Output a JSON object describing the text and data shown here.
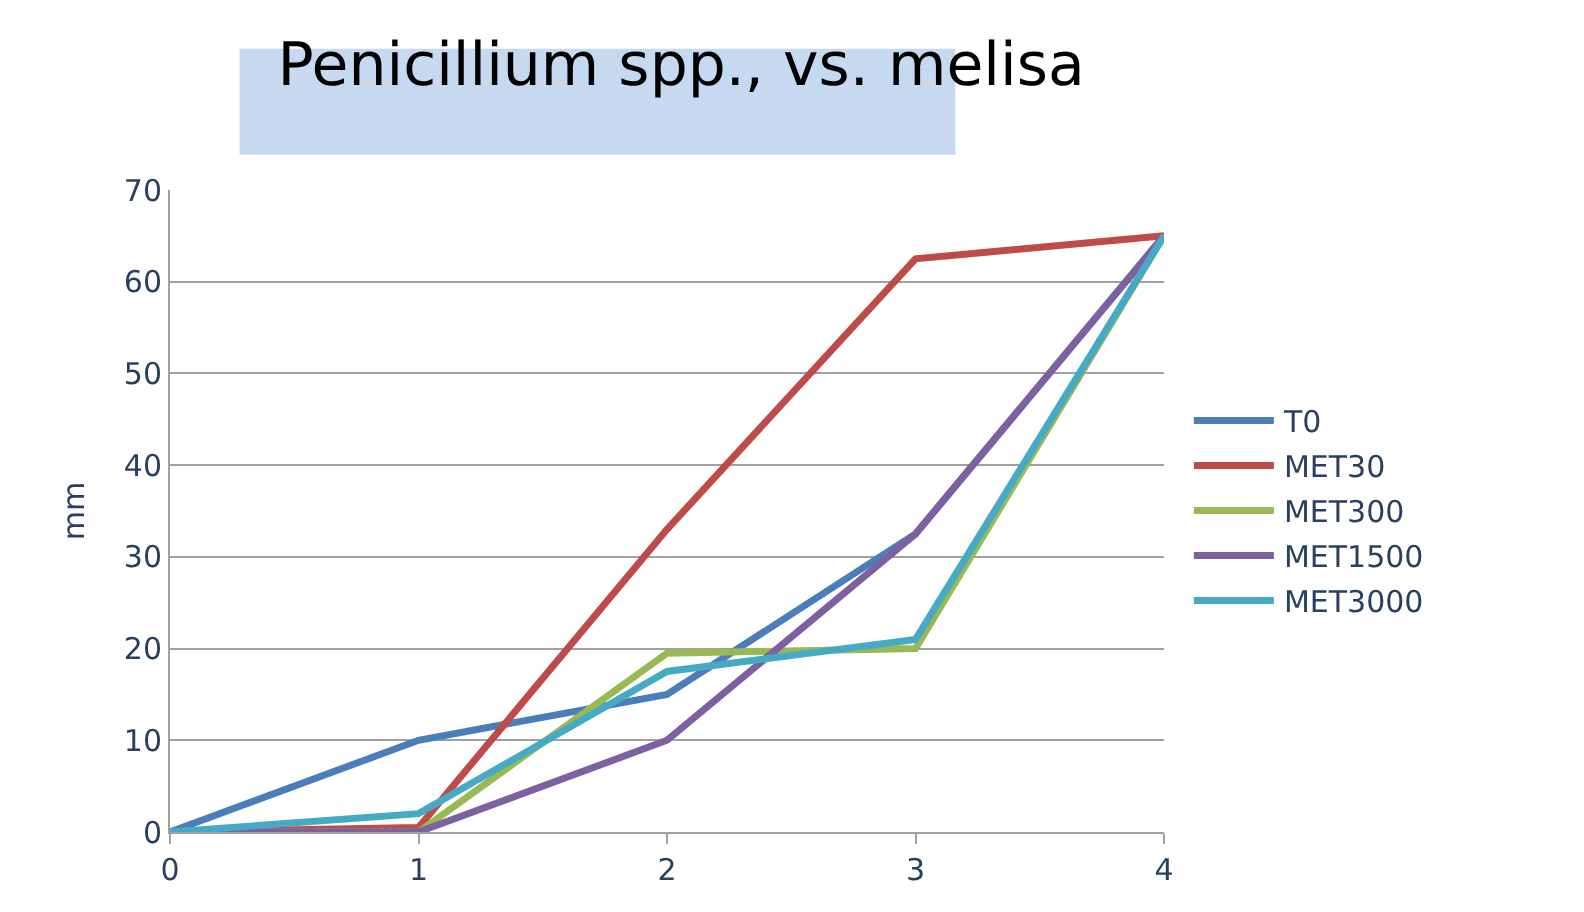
{
  "chart_data": {
    "type": "line",
    "title": "Penicillium spp., vs. melisa",
    "ylabel": "mm",
    "x": [
      0,
      1,
      2,
      3,
      4
    ],
    "series": [
      {
        "name": "T0",
        "color": "#4a7ebb",
        "values": [
          0,
          10,
          15,
          32.5,
          65
        ]
      },
      {
        "name": "MET30",
        "color": "#be4b48",
        "values": [
          0,
          0.5,
          33,
          62.5,
          65
        ]
      },
      {
        "name": "MET300",
        "color": "#98b954",
        "values": [
          0,
          0,
          19.5,
          20,
          65
        ]
      },
      {
        "name": "MET1500",
        "color": "#7d60a0",
        "values": [
          0,
          0,
          10,
          32.5,
          65
        ]
      },
      {
        "name": "MET3000",
        "color": "#46aac5",
        "values": [
          0,
          2,
          17.5,
          21,
          65
        ]
      }
    ],
    "xlim": [
      0,
      4
    ],
    "xticks": [
      0,
      1,
      2,
      3,
      4
    ],
    "ylim": [
      0,
      70
    ],
    "yticks": [
      0,
      10,
      20,
      30,
      40,
      50,
      60,
      70
    ],
    "grid": "y",
    "legend": "right",
    "marker": "none",
    "line_style": "solid"
  }
}
